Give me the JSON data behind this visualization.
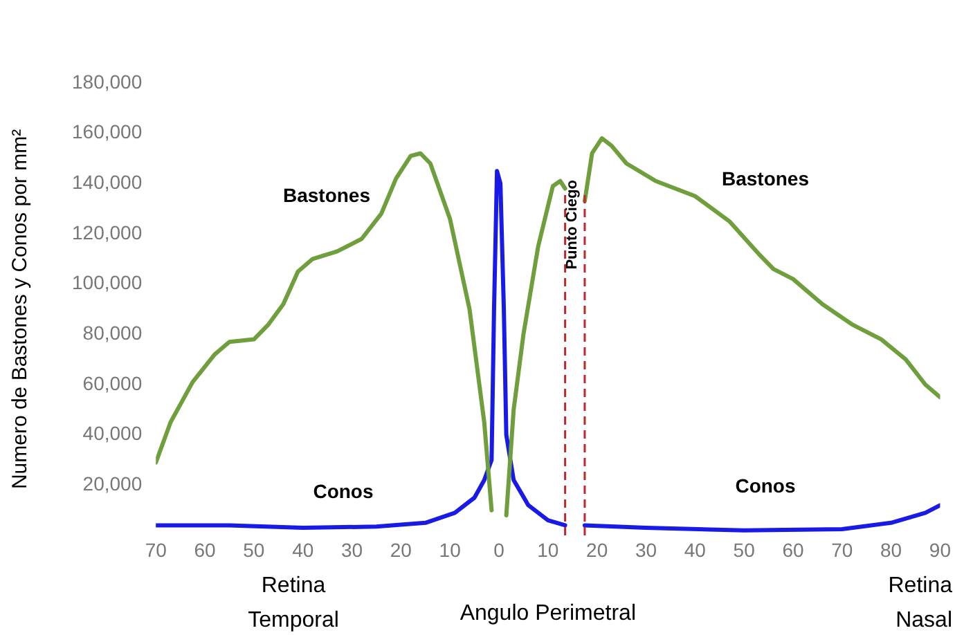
{
  "chart_data": {
    "type": "line",
    "xlabel": "Angulo Perimetral",
    "ylabel": "Numero de Bastones y Conos por mm²",
    "xlim": [
      -70,
      90
    ],
    "xticks": [
      {
        "value": -70,
        "label": "70"
      },
      {
        "value": -60,
        "label": "60"
      },
      {
        "value": -50,
        "label": "50"
      },
      {
        "value": -40,
        "label": "40"
      },
      {
        "value": -30,
        "label": "30"
      },
      {
        "value": -20,
        "label": "20"
      },
      {
        "value": -10,
        "label": "10"
      },
      0,
      10,
      20,
      30,
      40,
      50,
      60,
      70,
      80,
      90
    ],
    "ylim": [
      0,
      180000
    ],
    "yticks": [
      {
        "value": 20000,
        "label": "20,000"
      },
      {
        "value": 40000,
        "label": "40,000"
      },
      {
        "value": 60000,
        "label": "60,000"
      },
      {
        "value": 80000,
        "label": "80,000"
      },
      {
        "value": 100000,
        "label": "100,000"
      },
      {
        "value": 120000,
        "label": "120,000"
      },
      {
        "value": 140000,
        "label": "140,000"
      },
      {
        "value": 160000,
        "label": "160,000"
      },
      {
        "value": 180000,
        "label": "180,000"
      }
    ],
    "grid": false,
    "legend": false,
    "marker": "none",
    "line_style": "solid",
    "series": [
      {
        "color": "#6f9e3c",
        "x": [
          -70,
          -67,
          -62.5,
          -58,
          -55,
          -50,
          -47,
          -44,
          -41,
          -38,
          -33,
          -28,
          -24,
          -21,
          -18,
          -16,
          -14,
          -10,
          -6,
          -3,
          -1.5,
          0,
          1.5,
          3,
          5,
          8,
          11,
          12.5,
          13.5,
          15,
          17.5,
          19,
          21,
          23,
          26,
          32,
          40,
          47,
          53,
          56,
          60,
          66,
          72,
          78,
          83,
          87,
          90
        ],
        "values": [
          29000,
          45000,
          61000,
          72000,
          77000,
          78000,
          84000,
          92000,
          105000,
          110000,
          113000,
          118000,
          128000,
          142000,
          151000,
          152000,
          148000,
          126000,
          90000,
          45000,
          10000,
          null,
          8000,
          50000,
          80000,
          115000,
          139000,
          141000,
          138000,
          null,
          133000,
          152000,
          158000,
          155000,
          148000,
          141000,
          135000,
          125000,
          112000,
          106000,
          102000,
          92000,
          84000,
          78000,
          70000,
          60000,
          55000
        ]
      },
      {
        "color": "#1a1ae6",
        "x": [
          -70,
          -55,
          -40,
          -25,
          -15,
          -9,
          -5,
          -3,
          -1.5,
          -1,
          -0.4,
          0.3,
          1,
          1.5,
          3,
          6,
          10,
          13.5,
          15,
          17.5,
          30,
          50,
          70,
          80,
          87,
          90
        ],
        "values": [
          4000,
          4000,
          3000,
          3500,
          5000,
          9000,
          15000,
          22000,
          30000,
          90000,
          145000,
          140000,
          90000,
          40000,
          22000,
          12000,
          6000,
          4000,
          null,
          4000,
          3000,
          2000,
          2500,
          5000,
          9000,
          12000
        ]
      }
    ],
    "ref_lines": [
      {
        "axis": "x",
        "value": 13.5,
        "label": "Punto Ciego",
        "color": "#c0272d",
        "line_style": "dashed"
      },
      {
        "axis": "x",
        "value": 17.5,
        "label": null,
        "color": "#c0272d",
        "line_style": "dashed"
      }
    ],
    "annotations": [
      "Bastones",
      "Bastones",
      "Conos",
      "Conos",
      "Retina Temporal",
      "Retina Nasal"
    ]
  }
}
